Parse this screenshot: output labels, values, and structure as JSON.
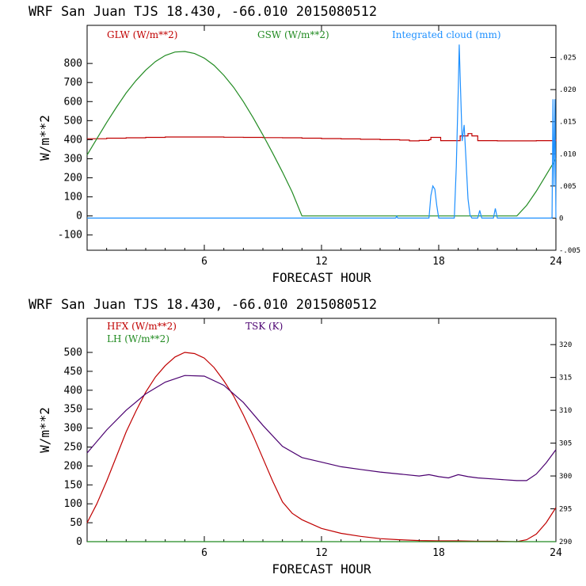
{
  "chart_data": [
    {
      "type": "line",
      "title": "WRF  San Juan TJS  18.430, -66.010  2015080512",
      "xlabel": "FORECAST HOUR",
      "ylabel": "W/m**2",
      "xlim": [
        0,
        24
      ],
      "ylim": [
        -180,
        1000
      ],
      "xticks": [
        6,
        12,
        18,
        24
      ],
      "xtick_labels": [
        "6",
        "12",
        "18",
        "24"
      ],
      "yticks": [
        -100,
        0,
        100,
        200,
        300,
        400,
        500,
        600,
        700,
        800
      ],
      "ytick_labels": [
        "-100",
        "0",
        "100",
        "200",
        "300",
        "400",
        "500",
        "600",
        "700",
        "800"
      ],
      "y2lim": [
        -0.005,
        0.03
      ],
      "y2ticks": [
        -0.005,
        0,
        0.005,
        0.01,
        0.015,
        0.02,
        0.025
      ],
      "y2tick_labels": [
        "-.005",
        "0",
        ".005",
        ".010",
        ".015",
        ".020",
        ".025"
      ],
      "series": [
        {
          "name": "GLW (W/m**2)",
          "color": "#c00000",
          "axis": "left",
          "x": [
            0,
            1,
            2,
            3,
            4,
            5,
            6,
            7,
            8,
            9,
            10,
            11,
            12,
            13,
            14,
            15,
            16,
            16.5,
            17,
            17.5,
            17.6,
            18,
            18.1,
            19,
            19.1,
            19.5,
            19.7,
            20,
            21,
            22,
            23,
            24
          ],
          "y": [
            405,
            408,
            410,
            412,
            414,
            414,
            414,
            413,
            412,
            411,
            410,
            408,
            406,
            404,
            402,
            400,
            398,
            394,
            396,
            400,
            412,
            412,
            395,
            395,
            420,
            432,
            420,
            395,
            394,
            394,
            395,
            400
          ]
        },
        {
          "name": "GSW (W/m**2)",
          "color": "#228b22",
          "axis": "left",
          "x": [
            0,
            0.5,
            1,
            1.5,
            2,
            2.5,
            3,
            3.5,
            4,
            4.5,
            5,
            5.5,
            6,
            6.5,
            7,
            7.5,
            8,
            8.5,
            9,
            9.5,
            10,
            10.5,
            11,
            12,
            14,
            16,
            18,
            20,
            22,
            22.5,
            23,
            23.5,
            24
          ],
          "y": [
            320,
            405,
            490,
            570,
            645,
            710,
            765,
            810,
            842,
            860,
            863,
            852,
            828,
            790,
            738,
            675,
            600,
            515,
            425,
            330,
            230,
            125,
            0,
            0,
            0,
            0,
            0,
            0,
            0,
            55,
            130,
            215,
            300
          ]
        },
        {
          "name": "Integrated cloud (mm)",
          "color": "#1e90ff",
          "axis": "right",
          "x": [
            0,
            15.8,
            15.85,
            15.9,
            17.5,
            17.6,
            17.7,
            17.8,
            17.9,
            18.0,
            18.8,
            18.9,
            19.0,
            19.05,
            19.1,
            19.2,
            19.3,
            19.4,
            19.5,
            19.6,
            19.7,
            20.0,
            20.1,
            20.2,
            20.8,
            20.9,
            21.0,
            23.8,
            23.85,
            23.9,
            23.95,
            24.0
          ],
          "y": [
            0,
            0,
            0.0003,
            0,
            0,
            0.0035,
            0.005,
            0.0045,
            0.002,
            0,
            0,
            0.008,
            0.02,
            0.027,
            0.022,
            0.012,
            0.0145,
            0.009,
            0.003,
            0.0005,
            0,
            0,
            0.0012,
            0,
            0,
            0.0015,
            0,
            0,
            0.0185,
            0.005,
            0.0185,
            0
          ]
        }
      ]
    },
    {
      "type": "line",
      "title": "WRF  San Juan TJS  18.430, -66.010  2015080512",
      "xlabel": "FORECAST HOUR",
      "ylabel": "W/m**2",
      "xlim": [
        0,
        24
      ],
      "ylim": [
        0,
        590
      ],
      "xticks": [
        6,
        12,
        18,
        24
      ],
      "xtick_labels": [
        "6",
        "12",
        "18",
        "24"
      ],
      "yticks": [
        0,
        50,
        100,
        150,
        200,
        250,
        300,
        350,
        400,
        450,
        500
      ],
      "ytick_labels": [
        "0",
        "50",
        "100",
        "150",
        "200",
        "250",
        "300",
        "350",
        "400",
        "450",
        "500"
      ],
      "y2lim": [
        290,
        324
      ],
      "y2ticks": [
        290,
        295,
        300,
        305,
        310,
        315,
        320
      ],
      "y2tick_labels": [
        "290",
        "295",
        "300",
        "305",
        "310",
        "315",
        "320"
      ],
      "series": [
        {
          "name": "HFX (W/m**2)",
          "color": "#c00000",
          "axis": "left",
          "x": [
            0,
            0.5,
            1,
            1.5,
            2,
            2.5,
            3,
            3.5,
            4,
            4.5,
            5,
            5.5,
            6,
            6.5,
            7,
            7.5,
            8,
            8.5,
            9,
            9.5,
            10,
            10.5,
            11,
            12,
            13,
            14,
            15,
            16,
            17,
            18,
            19,
            20,
            21,
            22,
            22.5,
            23,
            23.5,
            24
          ],
          "y": [
            50,
            100,
            160,
            225,
            290,
            345,
            395,
            435,
            465,
            488,
            500,
            497,
            485,
            460,
            425,
            385,
            335,
            280,
            220,
            160,
            105,
            75,
            58,
            35,
            22,
            14,
            8,
            5,
            3,
            2,
            2,
            1,
            1,
            0,
            5,
            20,
            50,
            90
          ]
        },
        {
          "name": "LH (W/m**2)",
          "color": "#228b22",
          "axis": "left",
          "x": [
            0,
            24
          ],
          "y": [
            0,
            0
          ]
        },
        {
          "name": "TSK (K)",
          "color": "#4b0070",
          "axis": "right",
          "x": [
            0,
            1,
            2,
            3,
            4,
            5,
            6,
            7,
            8,
            9,
            10,
            11,
            12,
            13,
            14,
            15,
            16,
            17,
            17.5,
            18,
            18.5,
            19,
            19.5,
            20,
            21,
            22,
            22.5,
            23,
            23.5,
            24
          ],
          "y": [
            303.5,
            307,
            310,
            312.5,
            314.3,
            315.3,
            315.2,
            313.8,
            311.2,
            307.7,
            304.5,
            302.8,
            302.1,
            301.4,
            301.0,
            300.6,
            300.3,
            300.0,
            300.2,
            299.9,
            299.7,
            300.2,
            299.9,
            299.7,
            299.5,
            299.3,
            299.3,
            300.3,
            302.0,
            304.0
          ]
        }
      ]
    }
  ]
}
